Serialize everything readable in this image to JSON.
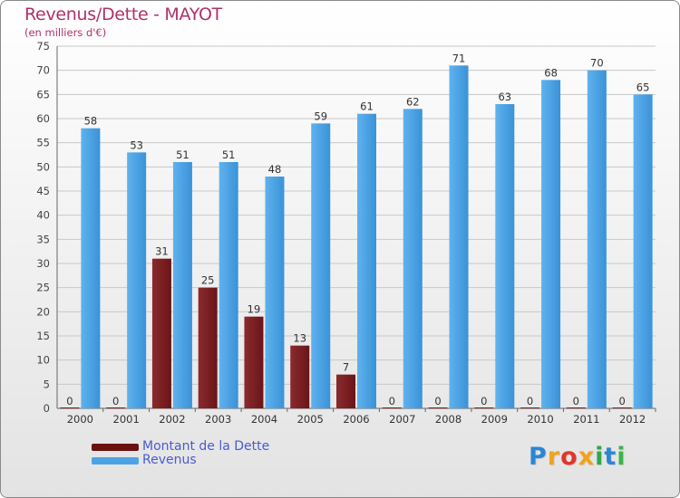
{
  "chart_data": {
    "type": "bar",
    "title": "Revenus/Dette - MAYOT",
    "subtitle": "(en milliers d'€)",
    "xlabel": "",
    "ylabel": "",
    "ylim": [
      0,
      75
    ],
    "yticks": [
      "0",
      "5",
      "10",
      "15",
      "20",
      "25",
      "30",
      "35",
      "40",
      "45",
      "50",
      "55",
      "60",
      "65",
      "70",
      "75"
    ],
    "categories": [
      "2000",
      "2001",
      "2002",
      "2003",
      "2004",
      "2005",
      "2006",
      "2007",
      "2008",
      "2009",
      "2010",
      "2011",
      "2012"
    ],
    "series": [
      {
        "name": "Montant de la Dette",
        "color": "#7a1f1f",
        "values": [
          0,
          0,
          31,
          25,
          19,
          13,
          7,
          0,
          0,
          0,
          0,
          0,
          0
        ]
      },
      {
        "name": "Revenus",
        "color": "#4ba3e6",
        "values": [
          58,
          53,
          51,
          51,
          48,
          59,
          61,
          62,
          71,
          63,
          68,
          70,
          65
        ]
      }
    ],
    "grid": true,
    "legend": "bottom-left"
  },
  "logo": {
    "letters": [
      {
        "ch": "P",
        "color": "#2a86d4"
      },
      {
        "ch": "r",
        "color": "#f2a21b"
      },
      {
        "ch": "o",
        "color": "#e0362c"
      },
      {
        "ch": "x",
        "color": "#f2a21b"
      },
      {
        "ch": "i",
        "color": "#2ea84a"
      },
      {
        "ch": "t",
        "color": "#2a86d4"
      },
      {
        "ch": "i",
        "color": "#3cb44b"
      }
    ]
  }
}
